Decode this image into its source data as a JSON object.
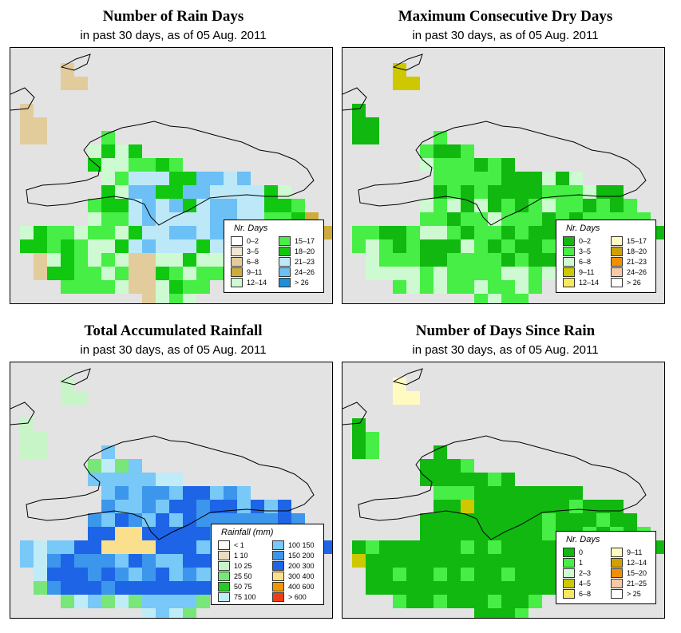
{
  "panels": [
    {
      "title": "Number of Rain Days",
      "subtitle": "in past 30 days, as of  05 Aug. 2011",
      "legend_title": "Nr. Days",
      "legend": [
        {
          "label": "0–2",
          "color": "#ffffff"
        },
        {
          "label": "3–5",
          "color": "#f2e6d0"
        },
        {
          "label": "6–8",
          "color": "#e3cc9c"
        },
        {
          "label": "9–11",
          "color": "#cdac3c"
        },
        {
          "label": "12–14",
          "color": "#cdfad0"
        },
        {
          "label": "15–17",
          "color": "#46ee46"
        },
        {
          "label": "18–20",
          "color": "#10c810"
        },
        {
          "label": "21–23",
          "color": "#bde8f8"
        },
        {
          "label": "24–26",
          "color": "#6cc0f5"
        },
        {
          "label": "> 26",
          "color": "#1e90d8"
        }
      ]
    },
    {
      "title": "Maximum Consecutive Dry Days",
      "subtitle": "in past 30 days, as of  05 Aug. 2011",
      "legend_title": "Nr. Days",
      "legend": [
        {
          "label": "0–2",
          "color": "#10b810"
        },
        {
          "label": "3–5",
          "color": "#46ee46"
        },
        {
          "label": "6–8",
          "color": "#cdfad0"
        },
        {
          "label": "9–11",
          "color": "#cdc800"
        },
        {
          "label": "12–14",
          "color": "#fae660"
        },
        {
          "label": "15–17",
          "color": "#fffac0"
        },
        {
          "label": "18–20",
          "color": "#d2a000"
        },
        {
          "label": "21–23",
          "color": "#f09000"
        },
        {
          "label": "24–26",
          "color": "#f8c8a8"
        },
        {
          "label": "> 26",
          "color": "#ffffff"
        }
      ]
    },
    {
      "title": "Total Accumulated Rainfall",
      "subtitle": "in past 30 days, as of  05 Aug. 2011",
      "legend_title": "Rainfall (mm)",
      "legend": [
        {
          "label": "< 1",
          "color": "#fffaf0"
        },
        {
          "label": "1    10",
          "color": "#ecdcc0"
        },
        {
          "label": "10    25",
          "color": "#c8f5c8"
        },
        {
          "label": "25    50",
          "color": "#78e678"
        },
        {
          "label": "50    75",
          "color": "#28c828"
        },
        {
          "label": "75    100",
          "color": "#c0ecf8"
        },
        {
          "label": "100  150",
          "color": "#78c8f8"
        },
        {
          "label": "150  200",
          "color": "#3c96ec"
        },
        {
          "label": "200  300",
          "color": "#1e64e6"
        },
        {
          "label": "300  400",
          "color": "#fae08c"
        },
        {
          "label": "400  600",
          "color": "#f09600"
        },
        {
          "label": "> 600",
          "color": "#f03c14"
        }
      ]
    },
    {
      "title": "Number of Days Since Rain",
      "subtitle": "in past 30 days, as of  05 Aug. 2011",
      "legend_title": "Nr. Days",
      "legend": [
        {
          "label": "0",
          "color": "#10b810"
        },
        {
          "label": "1",
          "color": "#46ee46"
        },
        {
          "label": "2–3",
          "color": "#cdfad0"
        },
        {
          "label": "4–5",
          "color": "#cdc800"
        },
        {
          "label": "6–8",
          "color": "#fae660"
        },
        {
          "label": "9–11",
          "color": "#fffac0"
        },
        {
          "label": "12–14",
          "color": "#d2a000"
        },
        {
          "label": "15–20",
          "color": "#f09000"
        },
        {
          "label": "21–25",
          "color": "#f8c8a8"
        },
        {
          "label": "> 25",
          "color": "#ffffff"
        }
      ]
    }
  ]
}
